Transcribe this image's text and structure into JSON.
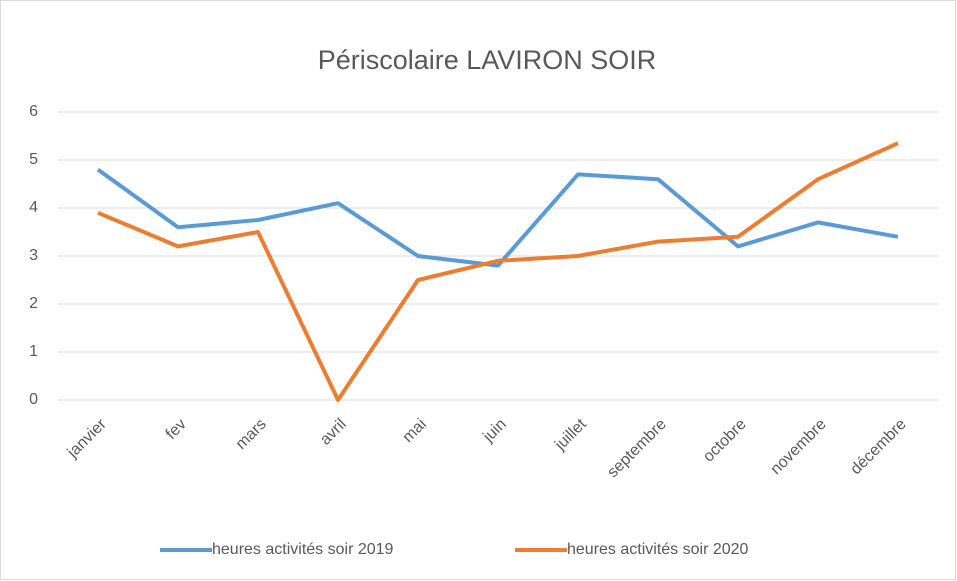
{
  "chart_data": {
    "type": "line",
    "title": "Périscolaire LAVIRON SOIR",
    "categories": [
      "janvier",
      "fev",
      "mars",
      "avril",
      "mai",
      "juin",
      "juillet",
      "septembre",
      "octobre",
      "novembre",
      "décembre"
    ],
    "series": [
      {
        "name": "heures activités soir 2019",
        "color": "#5b9bd5",
        "values": [
          4.8,
          3.6,
          3.75,
          4.1,
          3.0,
          2.8,
          4.7,
          4.6,
          3.2,
          3.7,
          3.4
        ]
      },
      {
        "name": "heures activités soir 2020",
        "color": "#ed7d31",
        "values": [
          3.9,
          3.2,
          3.5,
          0,
          2.5,
          2.9,
          3.0,
          3.3,
          3.4,
          4.6,
          5.35
        ]
      }
    ],
    "ylim": [
      0,
      6
    ],
    "yticks": [
      0,
      1,
      2,
      3,
      4,
      5,
      6
    ],
    "grid": true,
    "legend": "bottom"
  }
}
